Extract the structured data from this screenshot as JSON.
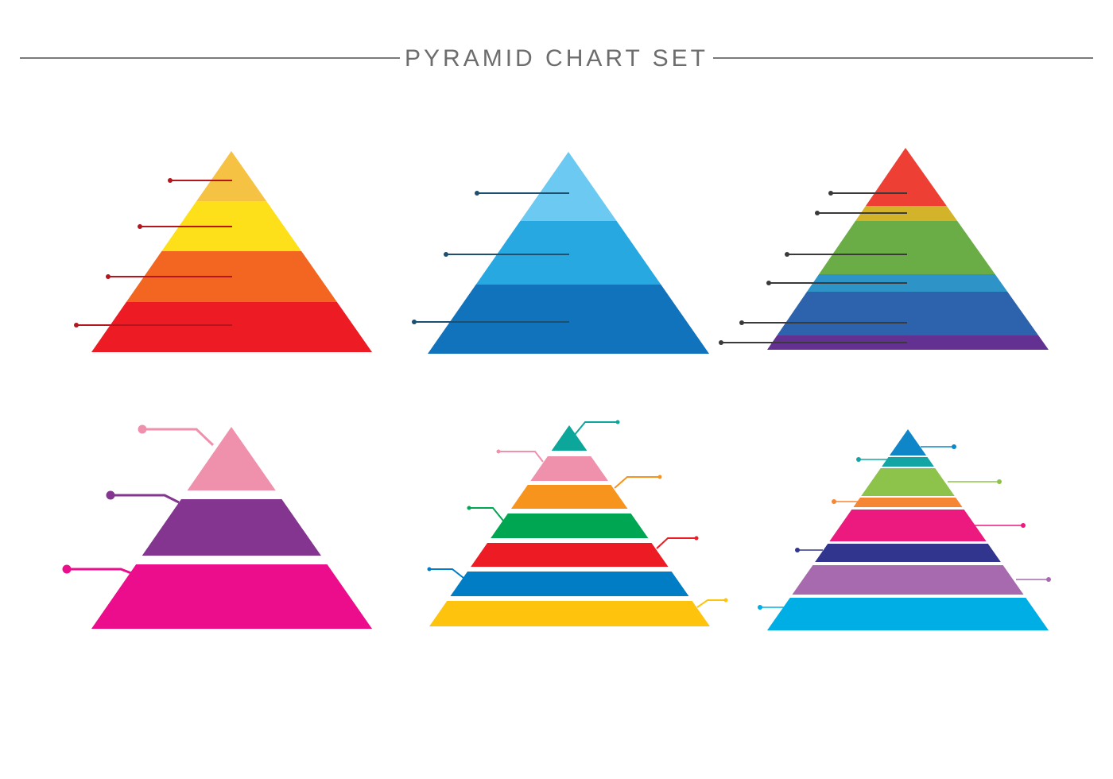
{
  "title": "PYRAMID CHART SET",
  "colors": {
    "rule": "#7a7a7a",
    "title": "#6d6d6d"
  },
  "pyramids": [
    {
      "name": "pyramid-warm",
      "layers": [
        "#f6c244",
        "#fde019",
        "#f26622",
        "#ed1c24"
      ],
      "leader_color": "#b5161e"
    },
    {
      "name": "pyramid-blue",
      "layers": [
        "#6ccaf2",
        "#28a8e0",
        "#1273bd"
      ],
      "leader_color": "#1d4f70"
    },
    {
      "name": "pyramid-rainbow",
      "layers": [
        "#ee3f35",
        "#d3b32a",
        "#6aac45",
        "#2e94c8",
        "#2d63ad",
        "#633192"
      ],
      "leader_color": "#3a3a3a"
    },
    {
      "name": "pyramid-pink-tiers",
      "layers": [
        "#ef91ad",
        "#84358f",
        "#ec0d8c"
      ],
      "leader_colors": [
        "#ef91ad",
        "#84358f",
        "#ec0d8c"
      ]
    },
    {
      "name": "pyramid-stacked-bands",
      "layers": [
        "#0da69a",
        "#ef91ad",
        "#f7941d",
        "#00a651",
        "#ed1c24",
        "#007dc5",
        "#fdc30d"
      ]
    },
    {
      "name": "pyramid-multicolor-bands",
      "layers": [
        "#0f86c8",
        "#13a5a3",
        "#8dc34a",
        "#f58634",
        "#ec1a7f",
        "#31358e",
        "#a86aaf",
        "#00aee6"
      ]
    }
  ]
}
